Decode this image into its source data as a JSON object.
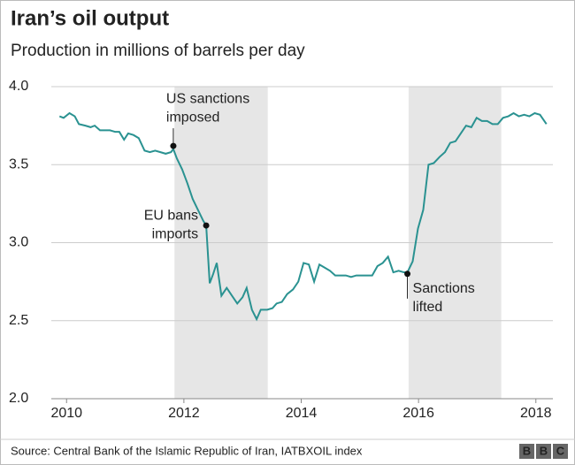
{
  "chart_data": {
    "type": "line",
    "title": "Iran’s oil output",
    "subtitle": "Production in millions of barrels per day",
    "source": "Source: Central Bank of the Islamic Republic of Iran, IATBXOIL index",
    "logo": "BBC",
    "series": [
      {
        "name": "Production",
        "color": "#2a9291",
        "x": [
          2009.88,
          2009.95,
          2010.05,
          2010.14,
          2010.21,
          2010.32,
          2010.41,
          2010.48,
          2010.57,
          2010.66,
          2010.74,
          2010.83,
          2010.9,
          2010.98,
          2011.05,
          2011.14,
          2011.23,
          2011.33,
          2011.42,
          2011.51,
          2011.6,
          2011.69,
          2011.78,
          2011.82,
          2011.88,
          2011.97,
          2012.06,
          2012.15,
          2012.24,
          2012.33,
          2012.38,
          2012.44,
          2012.5,
          2012.56,
          2012.64,
          2012.73,
          2012.82,
          2012.91,
          2013.0,
          2013.07,
          2013.16,
          2013.24,
          2013.31,
          2013.42,
          2013.51,
          2013.58,
          2013.67,
          2013.76,
          2013.86,
          2013.95,
          2014.04,
          2014.13,
          2014.22,
          2014.31,
          2014.4,
          2014.49,
          2014.58,
          2014.67,
          2014.76,
          2014.85,
          2014.94,
          2015.03,
          2015.12,
          2015.21,
          2015.3,
          2015.39,
          2015.48,
          2015.57,
          2015.66,
          2015.75,
          2015.81,
          2015.9,
          2015.99,
          2016.08,
          2016.17,
          2016.26,
          2016.36,
          2016.45,
          2016.54,
          2016.63,
          2016.72,
          2016.81,
          2016.9,
          2016.99,
          2017.08,
          2017.17,
          2017.26,
          2017.35,
          2017.44,
          2017.53,
          2017.62,
          2017.71,
          2017.8,
          2017.89,
          2017.98,
          2018.07,
          2018.18
        ],
        "values": [
          3.81,
          3.8,
          3.83,
          3.81,
          3.76,
          3.75,
          3.74,
          3.75,
          3.72,
          3.72,
          3.72,
          3.71,
          3.71,
          3.66,
          3.7,
          3.69,
          3.67,
          3.59,
          3.58,
          3.59,
          3.58,
          3.57,
          3.58,
          3.6,
          3.54,
          3.47,
          3.38,
          3.28,
          3.21,
          3.14,
          3.11,
          2.74,
          2.8,
          2.87,
          2.66,
          2.71,
          2.66,
          2.61,
          2.65,
          2.71,
          2.57,
          2.51,
          2.57,
          2.57,
          2.58,
          2.61,
          2.62,
          2.67,
          2.7,
          2.75,
          2.87,
          2.86,
          2.75,
          2.86,
          2.84,
          2.82,
          2.79,
          2.79,
          2.79,
          2.78,
          2.79,
          2.79,
          2.79,
          2.79,
          2.85,
          2.87,
          2.91,
          2.81,
          2.82,
          2.81,
          2.81,
          2.88,
          3.09,
          3.21,
          3.5,
          3.51,
          3.55,
          3.58,
          3.64,
          3.65,
          3.7,
          3.75,
          3.74,
          3.8,
          3.78,
          3.78,
          3.76,
          3.76,
          3.8,
          3.81,
          3.83,
          3.81,
          3.82,
          3.81,
          3.83,
          3.82,
          3.76
        ]
      }
    ],
    "shaded_ranges": [
      [
        2011.84,
        2013.43
      ],
      [
        2015.83,
        2017.41
      ]
    ],
    "annotations": [
      {
        "lines": [
          "US sanctions",
          "imposed"
        ],
        "x": 2011.82,
        "y": 3.62
      },
      {
        "lines": [
          "EU bans",
          "imports"
        ],
        "x": 2012.38,
        "y": 3.11
      },
      {
        "lines": [
          "Sanctions",
          "lifted"
        ],
        "x": 2015.81,
        "y": 2.8
      }
    ],
    "xlim": [
      2009.74,
      2018.29
    ],
    "xticks": [
      2010,
      2012,
      2014,
      2016,
      2018
    ],
    "ylim": [
      2,
      4
    ],
    "yticks": [
      {
        "value": 2,
        "label": "2.0"
      },
      2.5,
      {
        "value": 3,
        "label": "3.0"
      },
      3.5,
      {
        "value": 4,
        "label": "4.0"
      }
    ],
    "grid": true
  }
}
